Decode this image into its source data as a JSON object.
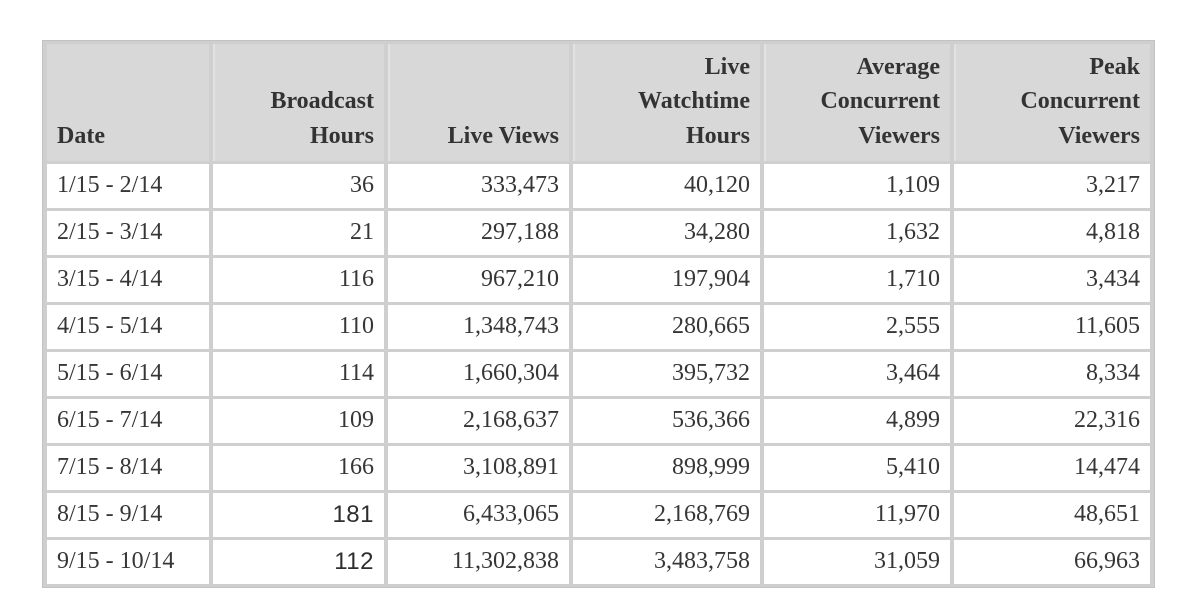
{
  "page": {
    "background": "#ffffff"
  },
  "colors": {
    "header_bg": "#d8d8d8",
    "cell_bg": "#ffffff",
    "grid": "#cfcfcf",
    "outer_border": "#c2c2c2",
    "text": "#333333"
  },
  "chart_data": {
    "type": "table",
    "title": "",
    "columns": [
      "Date",
      "Broadcast Hours",
      "Live Views",
      "Live Watchtime Hours",
      "Average Concurrent Viewers",
      "Peak Concurrent Viewers"
    ],
    "header_lines": [
      "Date",
      "Broadcast\nHours",
      "Live Views",
      "Live\nWatchtime\nHours",
      "Average\nConcurrent\nViewers",
      "Peak\nConcurrent\nViewers"
    ],
    "column_align": [
      "left",
      "right",
      "right",
      "right",
      "right",
      "right"
    ],
    "rows": [
      [
        "1/15 - 2/14",
        "36",
        "333,473",
        "40,120",
        "1,109",
        "3,217"
      ],
      [
        "2/15 - 3/14",
        "21",
        "297,188",
        "34,280",
        "1,632",
        "4,818"
      ],
      [
        "3/15 - 4/14",
        "116",
        "967,210",
        "197,904",
        "1,710",
        "3,434"
      ],
      [
        "4/15 - 5/14",
        "110",
        "1,348,743",
        "280,665",
        "2,555",
        "11,605"
      ],
      [
        "5/15 - 6/14",
        "114",
        "1,660,304",
        "395,732",
        "3,464",
        "8,334"
      ],
      [
        "6/15 - 7/14",
        "109",
        "2,168,637",
        "536,366",
        "4,899",
        "22,316"
      ],
      [
        "7/15 - 8/14",
        "166",
        "3,108,891",
        "898,999",
        "5,410",
        "14,474"
      ],
      [
        "8/15 - 9/14",
        "181",
        "6,433,065",
        "2,168,769",
        "11,970",
        "48,651"
      ],
      [
        "9/15 - 10/14",
        "112",
        "11,302,838",
        "3,483,758",
        "31,059",
        "66,963"
      ]
    ],
    "sans_font_cells": [
      {
        "row": 7,
        "col": 1
      },
      {
        "row": 8,
        "col": 1
      }
    ]
  }
}
